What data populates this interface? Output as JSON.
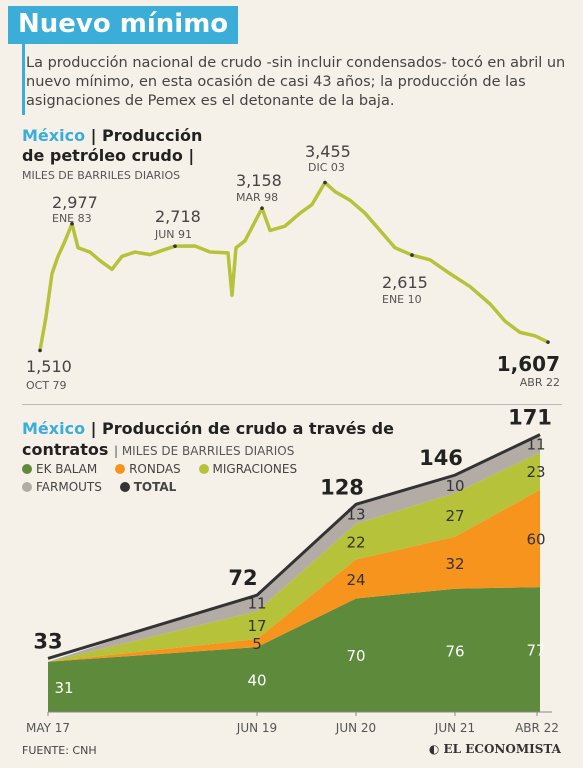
{
  "title": "Nuevo mínimo",
  "lead": "La producción nacional de crudo -sin incluir condensados- tocó en abril un nuevo mínimo, en esta ocasión de casi 43 años; la producción de las asignaciones de Pemex es el detonante de la baja.",
  "chart1": {
    "country": "México",
    "title_line1": "Producción",
    "title_line2": "de petróleo crudo",
    "units": "MILES DE BARRILES DIARIOS"
  },
  "chart2": {
    "country": "México",
    "title": "Producción de crudo a través de contratos",
    "units": "MILES DE BARRILES DIARIOS",
    "legend": [
      {
        "label": "EK BALAM",
        "color": "#5e8a3c"
      },
      {
        "label": "RONDAS",
        "color": "#f7941d"
      },
      {
        "label": "MIGRACIONES",
        "color": "#b6c23a"
      },
      {
        "label": "FARMOUTS",
        "color": "#b3aba6"
      },
      {
        "label": "TOTAL",
        "color": "#333333"
      }
    ]
  },
  "footer": {
    "source": "FUENTE: CNH",
    "brand": "EL ECONOMISTA"
  },
  "chart_data": [
    {
      "type": "line",
      "color": "#b6c23a",
      "x": [
        "OCT 79",
        "ENE 83",
        "JUN 91",
        "MAR 98",
        "DIC 03",
        "ENE 10",
        "ABR 22"
      ],
      "series": [
        {
          "values": [
            1510,
            2977,
            2718,
            3158,
            3455,
            2615,
            1607
          ]
        }
      ],
      "annotations": [
        {
          "value": "1,510",
          "label": "OCT 79"
        },
        {
          "value": "2,977",
          "label": "ENE 83"
        },
        {
          "value": "2,718",
          "label": "JUN 91"
        },
        {
          "value": "3,158",
          "label": "MAR 98"
        },
        {
          "value": "3,455",
          "label": "DIC 03"
        },
        {
          "value": "2,615",
          "label": "ENE 10"
        },
        {
          "value": "1,607",
          "label": "ABR 22"
        }
      ]
    },
    {
      "type": "area",
      "x": [
        "MAY 17",
        "JUN 19",
        "JUN 20",
        "JUN 21",
        "ABR 22"
      ],
      "series": [
        {
          "name": "EK BALAM",
          "values": [
            31,
            40,
            70,
            76,
            77
          ]
        },
        {
          "name": "RONDAS",
          "values": [
            0,
            5,
            24,
            32,
            60
          ]
        },
        {
          "name": "MIGRACIONES",
          "values": [
            0,
            17,
            22,
            27,
            23
          ]
        },
        {
          "name": "FARMOUTS",
          "values": [
            0,
            11,
            13,
            10,
            11
          ]
        },
        {
          "name": "TOTAL",
          "values": [
            33,
            72,
            128,
            146,
            171
          ]
        }
      ]
    }
  ]
}
